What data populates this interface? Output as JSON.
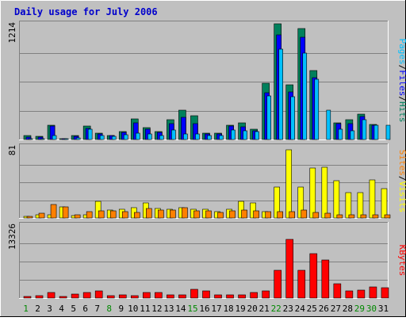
{
  "chart_data": {
    "type": "bar",
    "title": "Daily usage for July 2006",
    "days": [
      "1",
      "2",
      "3",
      "4",
      "5",
      "6",
      "7",
      "8",
      "9",
      "10",
      "11",
      "12",
      "13",
      "14",
      "15",
      "16",
      "17",
      "18",
      "19",
      "20",
      "21",
      "22",
      "23",
      "24",
      "25",
      "26",
      "27",
      "28",
      "29",
      "30",
      "31"
    ],
    "weekend_days": [
      1,
      8,
      15,
      22,
      29,
      30
    ],
    "colors": {
      "title": "#0000cc",
      "weekday_label": "#000000",
      "weekend_label": "#008800",
      "hits": "#00805c",
      "files": "#0000ff",
      "pages": "#00c0ff",
      "visits": "#ffff00",
      "sites": "#ff8000",
      "kbytes": "#ff0000",
      "panel": "#c0c0c0",
      "grid": "#808080",
      "background": "#c0c0c0"
    },
    "panels": [
      {
        "id": "hits",
        "ymax_label": "1214",
        "ymax": 1214,
        "legend": [
          "Pages",
          "/",
          "Files",
          "/",
          "Hits"
        ],
        "legend_colors": [
          "#00c0ff",
          "#000000",
          "#0000ff",
          "#000000",
          "#00805c"
        ],
        "series": [
          {
            "name": "Hits",
            "color": "#00805c",
            "values": [
              40,
              35,
              152,
              12,
              38,
              138,
              68,
              40,
              85,
              215,
              128,
              85,
              212,
              305,
              250,
              68,
              68,
              152,
              178,
              110,
              590,
              1214,
              570,
              1160,
              725,
              0,
              175,
              208,
              265,
              160,
              0
            ]
          },
          {
            "name": "Files",
            "color": "#0000ff",
            "values": [
              22,
              28,
              142,
              10,
              30,
              120,
              62,
              38,
              75,
              175,
              112,
              78,
              168,
              235,
              165,
              58,
              55,
              140,
              135,
              95,
              490,
              1095,
              500,
              1075,
              645,
              0,
              165,
              170,
              240,
              150,
              0
            ]
          },
          {
            "name": "Pages",
            "color": "#00c0ff",
            "values": [
              10,
              12,
              40,
              5,
              15,
              110,
              40,
              35,
              50,
              70,
              60,
              45,
              100,
              60,
              55,
              40,
              40,
              100,
              90,
              80,
              460,
              945,
              450,
              910,
              630,
              310,
              110,
              95,
              210,
              150,
              150
            ]
          }
        ]
      },
      {
        "id": "visits",
        "ymax_label": "81",
        "ymax": 81,
        "legend": [
          "Sites",
          "/",
          "Visits"
        ],
        "legend_colors": [
          "#ff8000",
          "#000000",
          "#ffff00"
        ],
        "series": [
          {
            "name": "Visits",
            "color": "#ffff00",
            "values": [
              2,
              4,
              4,
              13,
              3,
              4,
              19,
              9,
              10,
              12,
              17,
              11,
              10,
              12,
              10,
              10,
              7,
              10,
              19,
              17,
              7,
              35,
              77,
              35,
              57,
              58,
              42,
              29,
              29,
              43,
              33
            ]
          },
          {
            "name": "Sites",
            "color": "#ff8000",
            "values": [
              2,
              5,
              15,
              13,
              4,
              7,
              8,
              8,
              7,
              6,
              11,
              9,
              9,
              12,
              8,
              8,
              6,
              8,
              9,
              8,
              7,
              7,
              7,
              9,
              6,
              5,
              4,
              4,
              4,
              4,
              4
            ]
          }
        ]
      },
      {
        "id": "kbytes",
        "ymax_label": "13326",
        "ymax": 13326,
        "legend": [
          "KBytes"
        ],
        "legend_colors": [
          "#ff0000"
        ],
        "series": [
          {
            "name": "KBytes",
            "color": "#ff0000",
            "values": [
              300,
              430,
              1050,
              300,
              700,
              1050,
              1300,
              420,
              550,
              460,
              1050,
              1000,
              600,
              600,
              1550,
              1300,
              640,
              550,
              580,
              950,
              1300,
              5000,
              10750,
              5000,
              8100,
              7000,
              2600,
              1250,
              1400,
              2000,
              1850
            ]
          }
        ]
      }
    ]
  }
}
